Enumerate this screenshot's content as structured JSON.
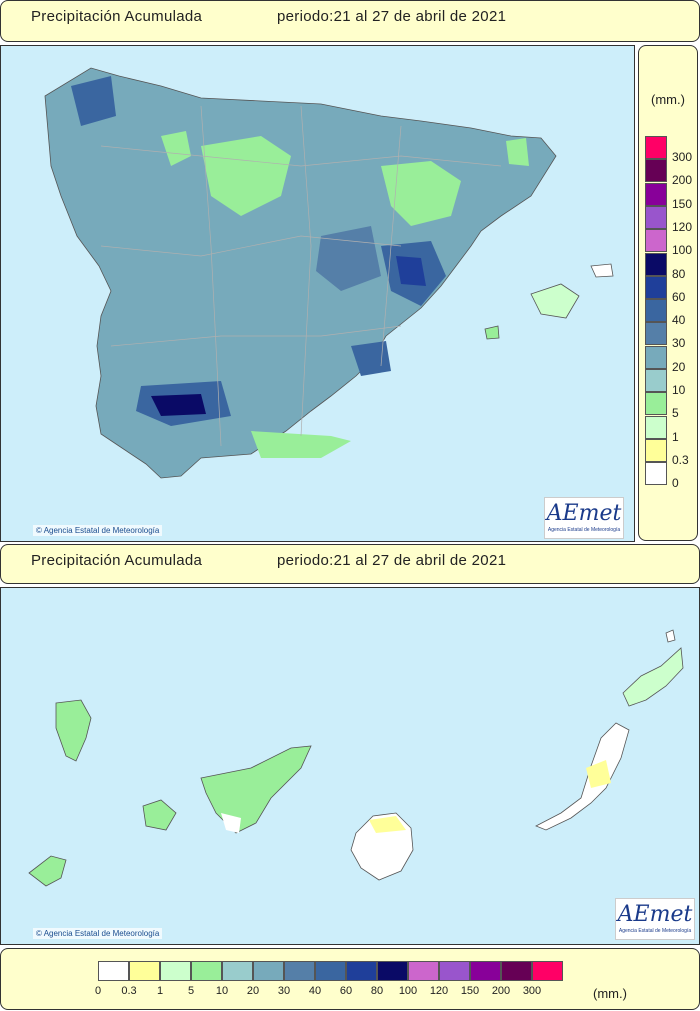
{
  "peninsula_header": {
    "title": "Precipitación Acumulada",
    "period": "periodo:21 al 27 de abril de 2021"
  },
  "canarias_header": {
    "title": "Precipitación Acumulada",
    "period": "periodo:21 al 27 de abril de 2021"
  },
  "credit": "Agencia Estatal de Meteorología",
  "logo": {
    "text": "AEmet",
    "subtitle": "Agencia Estatal de Meteorología"
  },
  "legend": {
    "unit": "(mm.)",
    "classes": [
      {
        "label": "0",
        "color": "#ffffff"
      },
      {
        "label": "0.3",
        "color": "#ffff99"
      },
      {
        "label": "1",
        "color": "#ccffcc"
      },
      {
        "label": "5",
        "color": "#99ee99"
      },
      {
        "label": "10",
        "color": "#99cccc"
      },
      {
        "label": "20",
        "color": "#77aabb"
      },
      {
        "label": "30",
        "color": "#557fa8"
      },
      {
        "label": "40",
        "color": "#3a66a0"
      },
      {
        "label": "60",
        "color": "#1f3f9a"
      },
      {
        "label": "80",
        "color": "#0a0a66"
      },
      {
        "label": "100",
        "color": "#cc66cc"
      },
      {
        "label": "120",
        "color": "#9955cc"
      },
      {
        "label": "150",
        "color": "#880099"
      },
      {
        "label": "200",
        "color": "#660055"
      },
      {
        "label": "300",
        "color": "#ff0066"
      }
    ]
  }
}
